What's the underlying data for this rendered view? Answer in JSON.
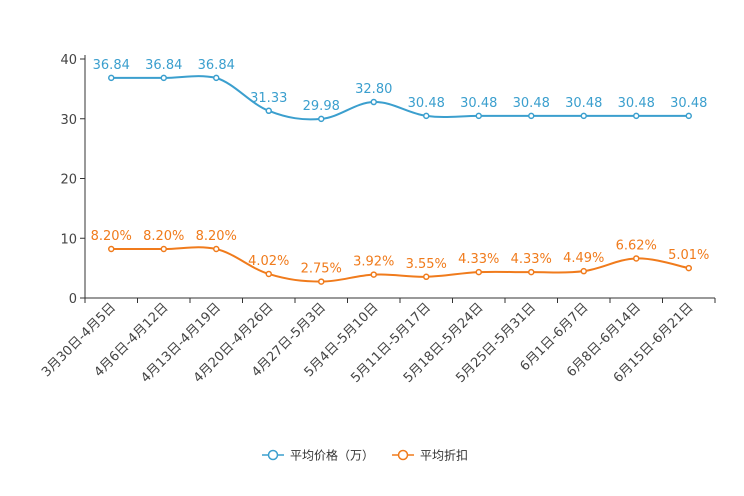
{
  "chart_data": {
    "type": "line",
    "title": "",
    "xlabel": "",
    "ylabel": "",
    "ylim": [
      0,
      40
    ],
    "yticks": [
      0,
      10,
      20,
      30,
      40
    ],
    "grid": false,
    "legend_position": "bottom-center",
    "categories": [
      "3月30日-4月5日",
      "4月6日-4月12日",
      "4月13日-4月19日",
      "4月20日-4月26日",
      "4月27日-5月3日",
      "5月4日-5月10日",
      "5月11日-5月17日",
      "5月18日-5月24日",
      "5月25日-5月31日",
      "6月1日-6月7日",
      "6月8日-6月14日",
      "6月15日-6月21日"
    ],
    "series": [
      {
        "name": "平均价格（万）",
        "color": "#3b9fce",
        "values": [
          36.84,
          36.84,
          36.84,
          31.33,
          29.98,
          32.8,
          30.48,
          30.48,
          30.48,
          30.48,
          30.48,
          30.48
        ],
        "labels": [
          "36.84",
          "36.84",
          "36.84",
          "31.33",
          "29.98",
          "32.80",
          "30.48",
          "30.48",
          "30.48",
          "30.48",
          "30.48",
          "30.48"
        ]
      },
      {
        "name": "平均折扣",
        "color": "#f07b1c",
        "values": [
          8.2,
          8.2,
          8.2,
          4.02,
          2.75,
          3.92,
          3.55,
          4.33,
          4.33,
          4.49,
          6.62,
          5.01
        ],
        "labels": [
          "8.20%",
          "8.20%",
          "8.20%",
          "4.02%",
          "2.75%",
          "3.92%",
          "3.55%",
          "4.33%",
          "4.33%",
          "4.49%",
          "6.62%",
          "5.01%"
        ]
      }
    ]
  }
}
